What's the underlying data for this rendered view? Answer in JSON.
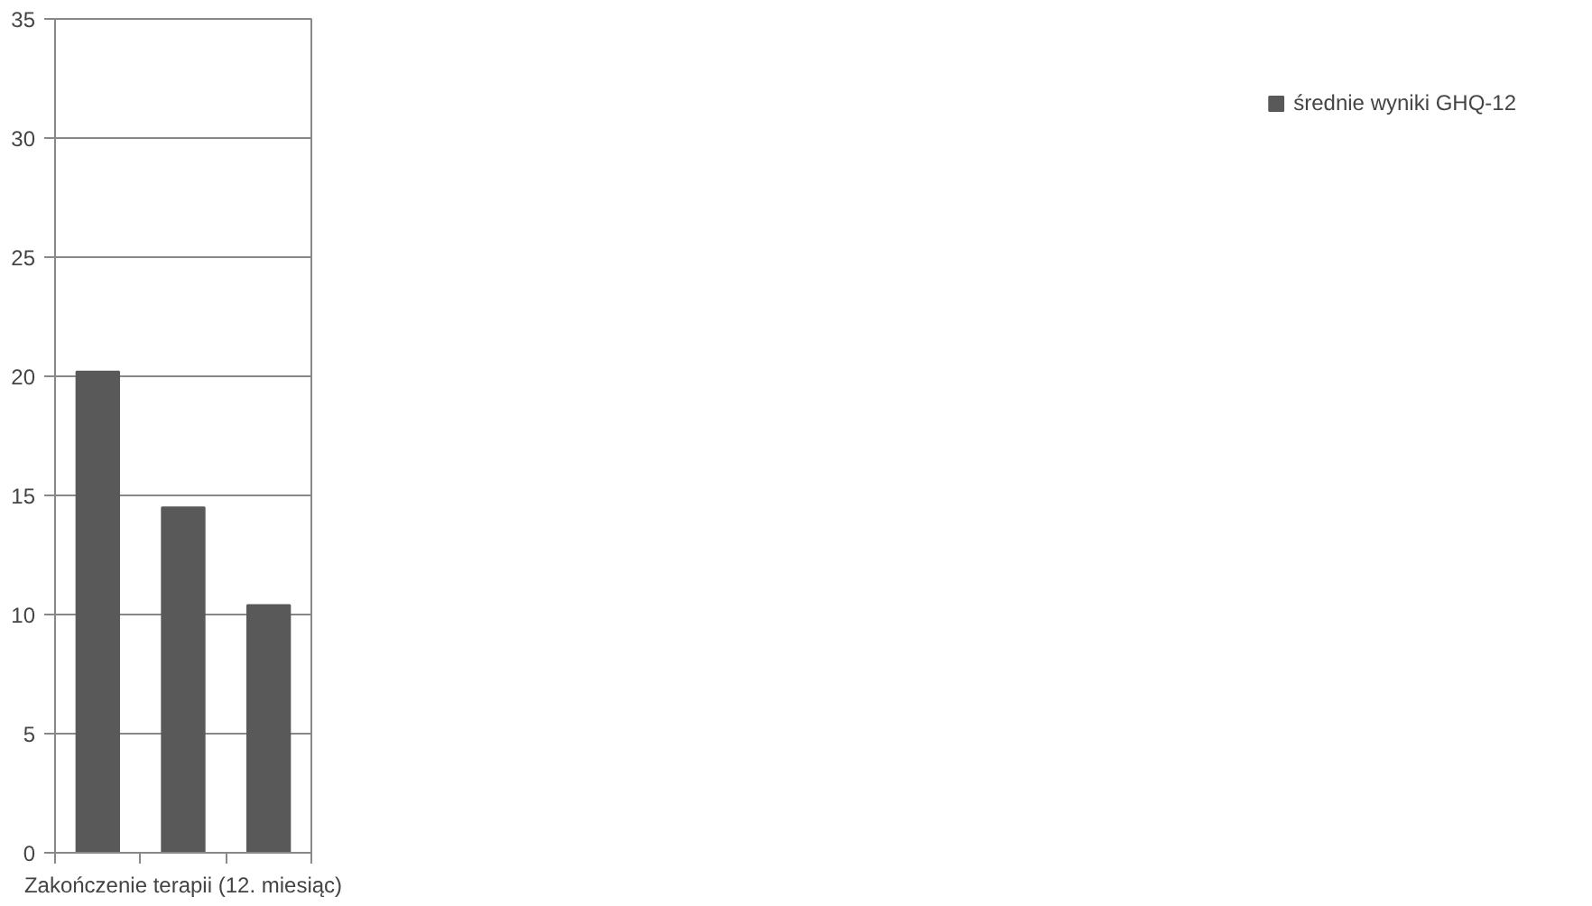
{
  "chart_data": {
    "type": "bar",
    "xlabel": "Zakończenie terapii (12. miesiąc)",
    "categories": [
      null,
      null,
      null
    ],
    "series": [
      {
        "name": "średnie wyniki GHQ-12",
        "color": "#595959",
        "values": [
          20.2,
          14.5,
          10.4
        ]
      }
    ],
    "ylim": [
      0,
      35
    ],
    "yticks": [
      0,
      5,
      10,
      15,
      20,
      25,
      30,
      35
    ],
    "grid": "y",
    "legend": "right"
  }
}
